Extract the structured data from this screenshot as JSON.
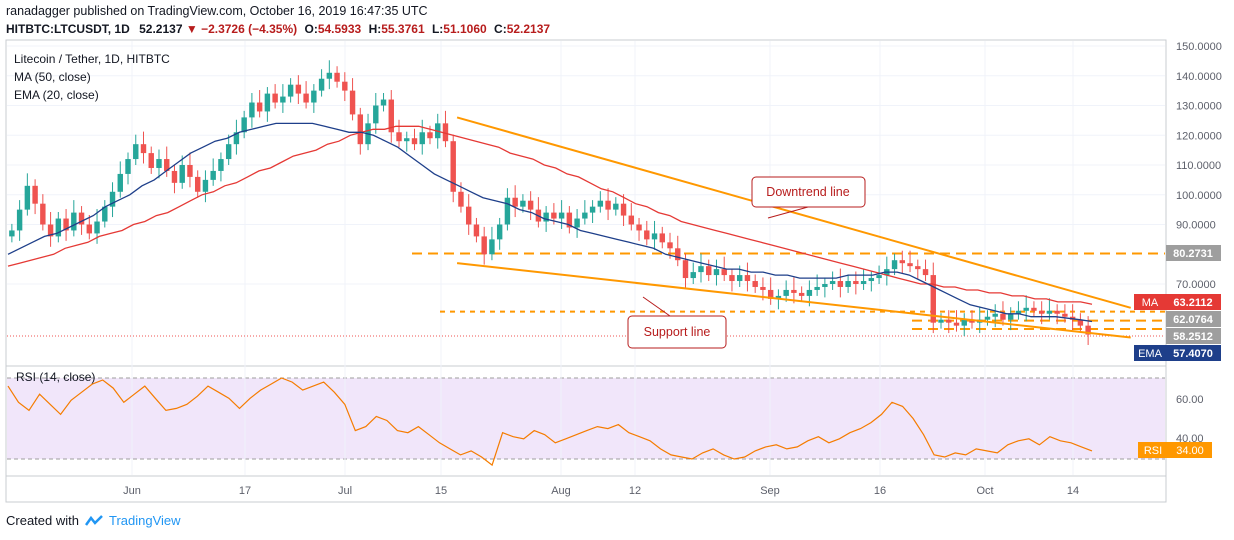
{
  "header": {
    "publisher_line": "ranadagger published on TradingView.com, October 16, 2019 16:47:35 UTC",
    "ticker": "HITBTC:LTCUSDT, 1D",
    "last": "52.2137",
    "change": "▼ −2.3726 (−4.35%)",
    "o_label": "O:",
    "o": "54.5933",
    "h_label": "H:",
    "h": "55.3761",
    "l_label": "L:",
    "l": "51.1060",
    "c_label": "C:",
    "c": "52.2137"
  },
  "legend": {
    "title": "Litecoin / Tether, 1D, HITBTC",
    "ma": "MA (50, close)",
    "ema": "EMA (20, close)"
  },
  "annotations": {
    "downtrend": "Downtrend line",
    "support": "Support line"
  },
  "price_badges": [
    {
      "label": "",
      "value": "80.2731",
      "bg": "#9e9e9e",
      "fg": "#ffffff"
    },
    {
      "label": "MA",
      "value": "63.2112",
      "bg": "#e53935",
      "fg": "#ffffff"
    },
    {
      "label": "",
      "value": "62.0764",
      "bg": "#9e9e9e",
      "fg": "#ffffff"
    },
    {
      "label": "",
      "value": "58.2512",
      "bg": "#9e9e9e",
      "fg": "#ffffff"
    },
    {
      "label": "EMA",
      "value": "57.4070",
      "bg": "#1e3f8a",
      "fg": "#ffffff"
    }
  ],
  "rsi": {
    "title": "RSI (14, close)",
    "badge_label": "RSI",
    "badge_value": "34.00",
    "ticks": [
      "60.00",
      "40.00"
    ]
  },
  "footer": {
    "created_with": "Created with",
    "brand": "TradingView"
  },
  "colors": {
    "up": "#26a69a",
    "down": "#ef5350",
    "ma": "#e53935",
    "ema": "#1e3f8a",
    "trend": "#ff9800",
    "rsi_line": "#f57c00",
    "rsi_bg": "#f3e5f5",
    "dash": "#ff9800"
  },
  "chart_data": {
    "type": "candlestick",
    "title": "Litecoin / Tether, 1D, HITBTC",
    "x_ticks": [
      "Jun",
      "17",
      "Jul",
      "15",
      "Aug",
      "12",
      "Sep",
      "16",
      "Oct",
      "14"
    ],
    "y_ticks": [
      "150.0000",
      "140.0000",
      "130.0000",
      "120.0000",
      "110.0000",
      "100.0000",
      "90.0000",
      "70.0000"
    ],
    "ylim": [
      52,
      150
    ],
    "close_series": [
      88,
      95,
      103,
      97,
      90,
      86,
      92,
      88,
      94,
      90,
      87,
      91,
      96,
      101,
      107,
      112,
      117,
      114,
      109,
      112,
      108,
      104,
      110,
      106,
      101,
      105,
      108,
      112,
      117,
      121,
      126,
      131,
      128,
      134,
      131,
      133,
      137,
      134,
      131,
      135,
      139,
      141,
      138,
      135,
      127,
      117,
      124,
      130,
      132,
      121,
      118,
      119,
      117,
      121,
      119,
      124,
      118,
      101,
      96,
      90,
      86,
      80,
      85,
      90,
      99,
      96,
      98,
      95,
      91,
      94,
      92,
      94,
      89,
      92,
      94,
      96,
      98,
      95,
      97,
      93,
      90,
      88,
      85,
      87,
      84,
      82,
      78,
      72,
      74,
      76,
      73,
      75,
      73,
      71,
      73,
      71,
      69,
      68,
      65,
      66,
      68,
      67,
      66,
      68,
      69,
      70,
      71,
      69,
      71,
      70,
      71,
      72,
      73,
      75,
      78,
      77,
      76,
      75,
      73,
      57,
      58,
      57,
      56,
      58,
      57,
      58,
      59,
      60,
      58,
      60,
      61,
      62,
      61,
      60,
      61,
      60,
      59,
      58,
      56,
      53
    ],
    "ma50_series": [
      76,
      77,
      78,
      79,
      80,
      82,
      83,
      84,
      86,
      87,
      88,
      90,
      91,
      93,
      94,
      96,
      98,
      100,
      101,
      103,
      104,
      106,
      108,
      109,
      111,
      113,
      114,
      115,
      117,
      118,
      120,
      121,
      122,
      122,
      123,
      123,
      123,
      122,
      121,
      120,
      119,
      118,
      117,
      116,
      114,
      113,
      112,
      110,
      109,
      107,
      106,
      104,
      102,
      101,
      99,
      97,
      96,
      94,
      93,
      91,
      90,
      89,
      88,
      87,
      86,
      85,
      84,
      83,
      82,
      81,
      80,
      79,
      78,
      77,
      76,
      75,
      74,
      73,
      72,
      71,
      70,
      70,
      69,
      69,
      68,
      68,
      67,
      67,
      66,
      66,
      65,
      65,
      64,
      64,
      64,
      63.2
    ],
    "ema20_series": [
      80,
      82,
      84,
      86,
      87,
      89,
      91,
      93,
      96,
      98,
      100,
      103,
      105,
      108,
      111,
      114,
      116,
      118,
      119,
      121,
      122,
      123,
      124,
      124,
      124,
      124,
      123,
      122,
      121,
      121,
      120,
      118,
      116,
      113,
      110,
      107,
      105,
      103,
      101,
      99,
      98,
      97,
      95,
      94,
      92,
      91,
      90,
      88,
      87,
      86,
      85,
      84,
      83,
      82,
      80,
      79,
      78,
      77,
      76,
      75,
      75,
      74,
      74,
      73,
      73,
      72,
      72,
      72,
      72,
      73,
      73,
      73,
      74,
      74,
      73,
      71,
      69,
      67,
      65,
      63,
      62,
      61,
      60,
      60,
      59,
      59,
      59,
      58.5,
      58,
      57.4
    ],
    "rsi_series": [
      66,
      58,
      54,
      62,
      57,
      52,
      59,
      63,
      67,
      69,
      65,
      58,
      62,
      66,
      60,
      54,
      55,
      57,
      61,
      66,
      63,
      60,
      55,
      60,
      64,
      67,
      70,
      68,
      64,
      66,
      68,
      63,
      57,
      44,
      46,
      51,
      49,
      44,
      43,
      46,
      42,
      38,
      35,
      32,
      34,
      31,
      27,
      43,
      41,
      40,
      44,
      42,
      38,
      40,
      42,
      44,
      46,
      45,
      47,
      43,
      41,
      39,
      35,
      32,
      31,
      30,
      33,
      35,
      32,
      30,
      31,
      34,
      36,
      37,
      35,
      36,
      39,
      41,
      38,
      40,
      43,
      45,
      48,
      52,
      58,
      56,
      50,
      42,
      32,
      31,
      33,
      32,
      35,
      34,
      33,
      37,
      39,
      40,
      37,
      41,
      39,
      38,
      36,
      34
    ],
    "levels": {
      "resistance": 80.2731,
      "ma": 63.2112,
      "range_top": 62.0764,
      "range_bottom": 58.2512,
      "ema": 57.407
    },
    "downtrend_line": {
      "from": [
        58,
        126
      ],
      "to": [
        145,
        62
      ]
    },
    "support_line": {
      "from": [
        58,
        77
      ],
      "to": [
        145,
        52
      ]
    }
  }
}
